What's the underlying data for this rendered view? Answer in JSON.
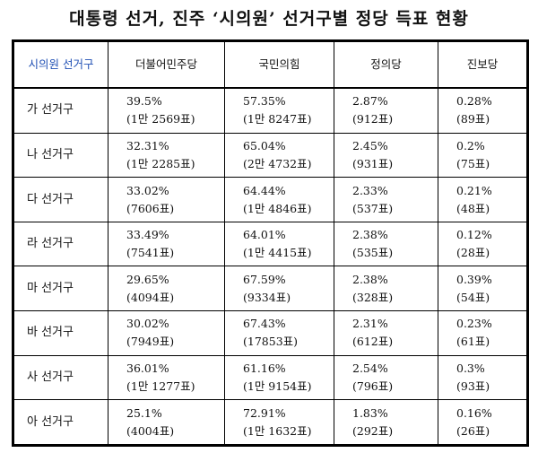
{
  "title": "대통령 선거, 진주 ‘시의원’ 선거구별 정당 득표 현황",
  "table": {
    "header": [
      "시의원 선거구",
      "더불어민주당",
      "국민의힘",
      "정의당",
      "진보당"
    ],
    "rows": [
      {
        "district": "가 선거구",
        "cells": [
          [
            "39.5%",
            "(1만 2569표)"
          ],
          [
            "57.35%",
            "(1만 8247표)"
          ],
          [
            "2.87%",
            "(912표)"
          ],
          [
            "0.28%",
            "(89표)"
          ]
        ]
      },
      {
        "district": "나 선거구",
        "cells": [
          [
            "32.31%",
            "(1만 2285표)"
          ],
          [
            "65.04%",
            "(2만 4732표)"
          ],
          [
            "2.45%",
            "(931표)"
          ],
          [
            "0.2%",
            "(75표)"
          ]
        ]
      },
      {
        "district": "다 선거구",
        "cells": [
          [
            "33.02%",
            "(7606표)"
          ],
          [
            "64.44%",
            "(1만 4846표)"
          ],
          [
            "2.33%",
            "(537표)"
          ],
          [
            "0.21%",
            "(48표)"
          ]
        ]
      },
      {
        "district": "라 선거구",
        "cells": [
          [
            "33.49%",
            "(7541표)"
          ],
          [
            "64.01%",
            "(1만 4415표)"
          ],
          [
            "2.38%",
            "(535표)"
          ],
          [
            "0.12%",
            "(28표)"
          ]
        ]
      },
      {
        "district": "마 선거구",
        "cells": [
          [
            "29.65%",
            "(4094표)"
          ],
          [
            "67.59%",
            "(9334표)"
          ],
          [
            "2.38%",
            "(328표)"
          ],
          [
            "0.39%",
            "(54표)"
          ]
        ]
      },
      {
        "district": "바 선거구",
        "cells": [
          [
            "30.02%",
            "(7949표)"
          ],
          [
            "67.43%",
            "(17853표)"
          ],
          [
            "2.31%",
            "(612표)"
          ],
          [
            "0.23%",
            "(61표)"
          ]
        ]
      },
      {
        "district": "사 선거구",
        "cells": [
          [
            "36.01%",
            "(1만 1277표)"
          ],
          [
            "61.16%",
            "(1만 9154표)"
          ],
          [
            "2.54%",
            "(796표)"
          ],
          [
            "0.3%",
            "(93표)"
          ]
        ]
      },
      {
        "district": "아 선거구",
        "cells": [
          [
            "25.1%",
            "(4004표)"
          ],
          [
            "72.91%",
            "(1만 1632표)"
          ],
          [
            "1.83%",
            "(292표)"
          ],
          [
            "0.16%",
            "(26표)"
          ]
        ]
      }
    ]
  }
}
